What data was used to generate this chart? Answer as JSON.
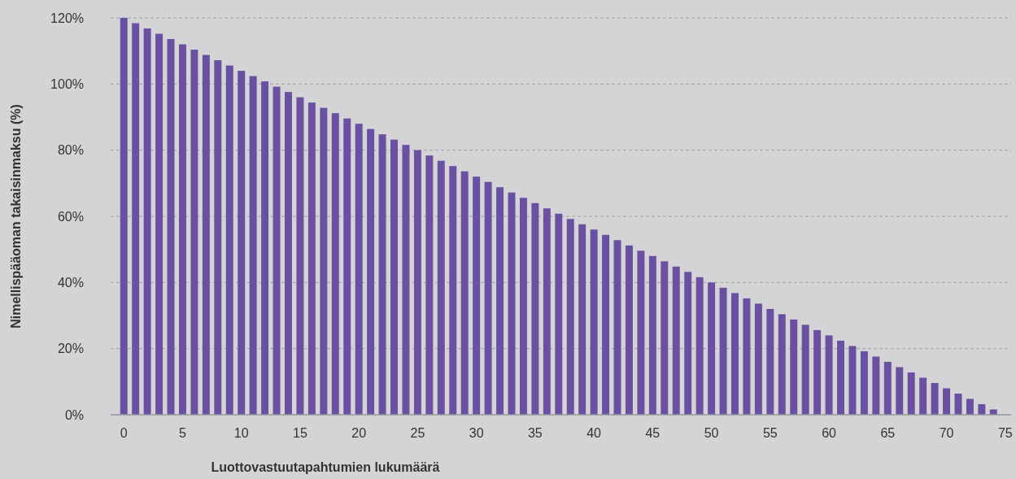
{
  "chart_data": {
    "type": "bar",
    "xlabel": "Luottovastuutapahtumien lukumäärä",
    "ylabel": "Nimellispääoman takaisinmaksu (%)",
    "x": [
      0,
      1,
      2,
      3,
      4,
      5,
      6,
      7,
      8,
      9,
      10,
      11,
      12,
      13,
      14,
      15,
      16,
      17,
      18,
      19,
      20,
      21,
      22,
      23,
      24,
      25,
      26,
      27,
      28,
      29,
      30,
      31,
      32,
      33,
      34,
      35,
      36,
      37,
      38,
      39,
      40,
      41,
      42,
      43,
      44,
      45,
      46,
      47,
      48,
      49,
      50,
      51,
      52,
      53,
      54,
      55,
      56,
      57,
      58,
      59,
      60,
      61,
      62,
      63,
      64,
      65,
      66,
      67,
      68,
      69,
      70,
      71,
      72,
      73,
      74
    ],
    "values": [
      120,
      118.4,
      116.8,
      115.2,
      113.6,
      112,
      110.4,
      108.8,
      107.2,
      105.6,
      104,
      102.4,
      100.8,
      99.2,
      97.6,
      96,
      94.4,
      92.8,
      91.2,
      89.6,
      88,
      86.4,
      84.8,
      83.2,
      81.6,
      80,
      78.4,
      76.8,
      75.2,
      73.6,
      72,
      70.4,
      68.8,
      67.2,
      65.6,
      64,
      62.4,
      60.8,
      59.2,
      57.6,
      56,
      54.4,
      52.8,
      51.2,
      49.6,
      48,
      46.4,
      44.8,
      43.2,
      41.6,
      40,
      38.4,
      36.8,
      35.2,
      33.6,
      32,
      30.4,
      28.8,
      27.2,
      25.6,
      24,
      22.4,
      20.8,
      19.2,
      17.6,
      16,
      14.4,
      12.8,
      11.2,
      9.6,
      8,
      6.4,
      4.8,
      3.2,
      1.6
    ],
    "color": "#6a50a2",
    "xlim": [
      -0.5,
      75.5
    ],
    "xticks": [
      0,
      5,
      10,
      15,
      20,
      25,
      30,
      35,
      40,
      45,
      50,
      55,
      60,
      65,
      70,
      75
    ],
    "ylim": [
      0,
      120
    ],
    "yticks": [
      {
        "value": 0,
        "label": "0%"
      },
      {
        "value": 20,
        "label": "20%"
      },
      {
        "value": 40,
        "label": "40%"
      },
      {
        "value": 60,
        "label": "60%"
      },
      {
        "value": 80,
        "label": "80%"
      },
      {
        "value": 100,
        "label": "100%"
      },
      {
        "value": 120,
        "label": "120%"
      }
    ],
    "grid": "y"
  }
}
